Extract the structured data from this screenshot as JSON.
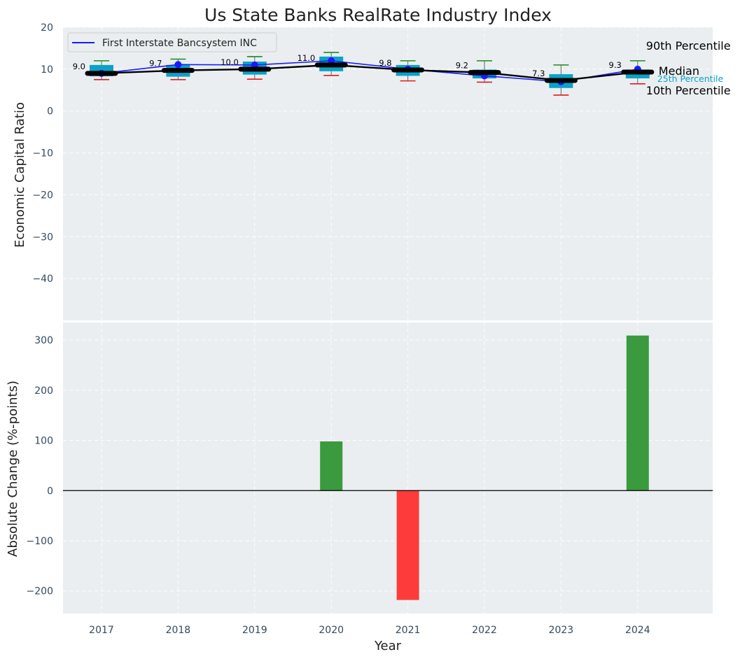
{
  "chart_data": {
    "title": "Us State Banks RealRate Industry Index",
    "years": [
      "2017",
      "2018",
      "2019",
      "2020",
      "2021",
      "2022",
      "2023",
      "2024"
    ],
    "xlabel": "Year",
    "top": {
      "ylabel": "Economic Capital Ratio",
      "ylim": [
        -50,
        20
      ],
      "yticks": [
        20,
        10,
        0,
        -10,
        -20,
        -30,
        -40
      ],
      "legend": "First Interstate Bancsystem INC",
      "legend_position": "top-left",
      "company": [
        9.0,
        11.1,
        11.0,
        12.0,
        10.0,
        8.4,
        7.0,
        10.0
      ],
      "median": [
        9.0,
        9.7,
        10.0,
        11.0,
        9.8,
        9.2,
        7.3,
        9.3
      ],
      "median_labels": [
        "9.0",
        "9.7",
        "10.0",
        "11.0",
        "9.8",
        "9.2",
        "7.3",
        "9.3"
      ],
      "p10": [
        7.5,
        7.5,
        7.6,
        8.5,
        7.2,
        6.9,
        3.8,
        6.5
      ],
      "p25": [
        8.3,
        8.2,
        8.7,
        9.5,
        8.4,
        7.8,
        5.5,
        7.8
      ],
      "p75": [
        11.0,
        11.0,
        11.8,
        13.0,
        11.0,
        9.9,
        8.8,
        9.9
      ],
      "p90": [
        12.0,
        12.4,
        13.0,
        14.0,
        12.0,
        12.0,
        11.0,
        12.0
      ],
      "side_labels": {
        "p90": "90th Percentile",
        "median": "Median",
        "p25": "25th Percentile",
        "p10": "10th Percentile"
      }
    },
    "bottom": {
      "type": "bar",
      "ylabel": "Absolute Change (%-points)",
      "ylim": [
        -245,
        335
      ],
      "yticks": [
        300,
        200,
        100,
        0,
        -100,
        -200
      ],
      "values": [
        0,
        0,
        0,
        98,
        -218,
        0,
        0,
        309
      ],
      "positive_color": "#3a9a3d",
      "negative_color": "#fe3b3b"
    },
    "colors": {
      "background": "#eaeef0",
      "box": "#0aa3c8",
      "company_line": "#1a1aff",
      "median_line": "#000000",
      "p90_whisker": "#1c8a1c",
      "p10_whisker": "#e31a1c",
      "p25_text": "#0aa3c8"
    }
  }
}
